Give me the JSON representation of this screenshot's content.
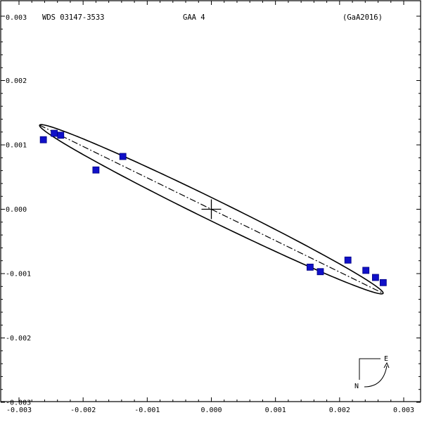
{
  "header": {
    "wds": "WDS 03147-3533",
    "source": "GAA   4",
    "ref": "(GaA2016)"
  },
  "compass": {
    "east": "E",
    "north": "N"
  },
  "chart_data": {
    "type": "scatter",
    "xlim": [
      -0.003,
      0.003
    ],
    "ylim": [
      -0.003,
      0.003
    ],
    "x_ticks": [
      "-0.003",
      "-0.002",
      "-0.001",
      "0.000",
      "0.001",
      "0.002",
      "0.003"
    ],
    "x_tick_values": [
      -0.003,
      -0.002,
      -0.001,
      0.0,
      0.001,
      0.002,
      0.003
    ],
    "y_ticks": [
      "0.003",
      "0.002",
      "0.001",
      "0.000",
      "-0.001",
      "-0.002",
      "-0.003"
    ],
    "y_tick_values": [
      0.003,
      0.002,
      0.001,
      0.0,
      -0.001,
      -0.002,
      -0.003
    ],
    "ellipse": {
      "center": [
        0.0,
        0.0
      ],
      "semi_major": 0.00298,
      "semi_minor": 0.000165,
      "angle_deg": -26.0
    },
    "points": [
      {
        "x": -0.00262,
        "y": 0.00108
      },
      {
        "x": -0.00245,
        "y": 0.00118
      },
      {
        "x": -0.00235,
        "y": 0.00115
      },
      {
        "x": -0.0018,
        "y": 0.00061
      },
      {
        "x": -0.00138,
        "y": 0.00082
      },
      {
        "x": 0.00154,
        "y": -0.0009
      },
      {
        "x": 0.0017,
        "y": -0.00097
      },
      {
        "x": 0.00213,
        "y": -0.00079
      },
      {
        "x": 0.00241,
        "y": -0.00095
      },
      {
        "x": 0.00256,
        "y": -0.00106
      },
      {
        "x": 0.00268,
        "y": -0.00114
      }
    ],
    "grid": false,
    "colors": {
      "points": "#1010c8",
      "point_edge": "#000080",
      "lines": "#000000"
    }
  }
}
